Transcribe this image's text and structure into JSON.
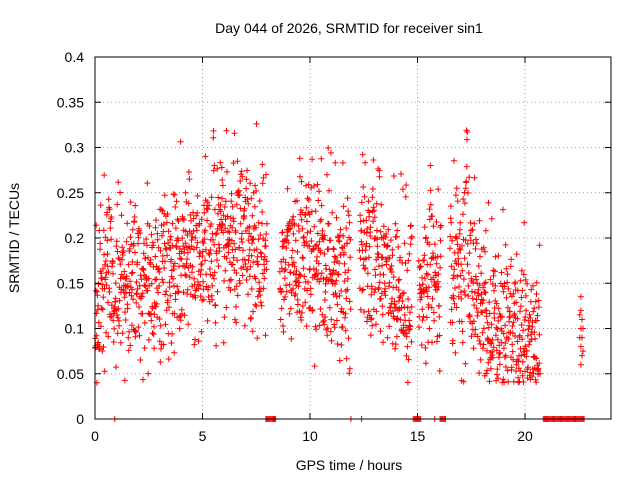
{
  "chart_data": {
    "type": "scatter",
    "title": "Day 044 of 2026, SRMTID for receiver sin1",
    "xlabel": "GPS time / hours",
    "ylabel": "SRMTID / TECUs",
    "xlim": [
      0,
      24
    ],
    "ylim": [
      0,
      0.4
    ],
    "xticks": [
      0,
      5,
      10,
      15,
      20
    ],
    "yticks": [
      0,
      0.05,
      0.1,
      0.15,
      0.2,
      0.25,
      0.3,
      0.35,
      0.4
    ],
    "xtick_labels": [
      "0",
      "5",
      "10",
      "15",
      "20"
    ],
    "ytick_labels": [
      "0",
      "0.05",
      "0.1",
      "0.15",
      "0.2",
      "0.25",
      "0.3",
      "0.35",
      "0.4"
    ],
    "grid": true,
    "marker": "+",
    "color": "#ff0000",
    "profile": [
      [
        0.0,
        0.12
      ],
      [
        0.4,
        0.16
      ],
      [
        1.0,
        0.14
      ],
      [
        2.0,
        0.15
      ],
      [
        3.0,
        0.16
      ],
      [
        4.0,
        0.17
      ],
      [
        5.0,
        0.18
      ],
      [
        6.0,
        0.19
      ],
      [
        7.0,
        0.19
      ],
      [
        8.0,
        0.18
      ],
      [
        9.0,
        0.17
      ],
      [
        10.0,
        0.18
      ],
      [
        11.0,
        0.17
      ],
      [
        12.0,
        0.17
      ],
      [
        13.0,
        0.18
      ],
      [
        14.0,
        0.15
      ],
      [
        15.0,
        0.14
      ],
      [
        16.0,
        0.16
      ],
      [
        17.0,
        0.17
      ],
      [
        18.0,
        0.13
      ],
      [
        19.0,
        0.1
      ],
      [
        20.0,
        0.09
      ],
      [
        20.7,
        0.09
      ]
    ],
    "spread": 0.045,
    "sample_step": 0.011,
    "features": [
      {
        "x": 0.7,
        "w": 0.2,
        "peak": 0.25
      },
      {
        "x": 5.5,
        "w": 0.12,
        "peak": 0.34
      },
      {
        "x": 7.0,
        "w": 0.15,
        "peak": 0.27
      },
      {
        "x": 9.8,
        "w": 0.2,
        "peak": 0.28
      },
      {
        "x": 13.2,
        "w": 0.15,
        "peak": 0.32
      },
      {
        "x": 15.6,
        "w": 0.12,
        "peak": 0.29
      },
      {
        "x": 17.3,
        "w": 0.25,
        "peak": 0.34
      },
      {
        "x": 14.5,
        "w": 0.35,
        "trough": 0.07
      },
      {
        "x": 18.4,
        "w": 0.4,
        "trough": 0.055
      }
    ],
    "gaps": [
      [
        8.0,
        8.6
      ],
      [
        11.9,
        12.3
      ],
      [
        14.75,
        15.05
      ],
      [
        16.1,
        16.5
      ]
    ],
    "late_points": [
      [
        22.6,
        0.06
      ],
      [
        22.6,
        0.08
      ],
      [
        22.6,
        0.1
      ],
      [
        22.6,
        0.12
      ],
      [
        22.6,
        0.135
      ],
      [
        22.65,
        0.07
      ],
      [
        22.65,
        0.09
      ],
      [
        22.65,
        0.11
      ],
      [
        22.7,
        0.075
      ],
      [
        22.7,
        0.1
      ],
      [
        22.55,
        0.09
      ],
      [
        22.55,
        0.115
      ]
    ],
    "zero_runs": [
      [
        0.92,
        0.95
      ],
      [
        7.95,
        8.45
      ],
      [
        11.9,
        11.95
      ],
      [
        12.4,
        12.45
      ],
      [
        14.8,
        15.2
      ],
      [
        15.8,
        15.85
      ],
      [
        16.05,
        16.35
      ],
      [
        20.85,
        22.8
      ]
    ]
  }
}
